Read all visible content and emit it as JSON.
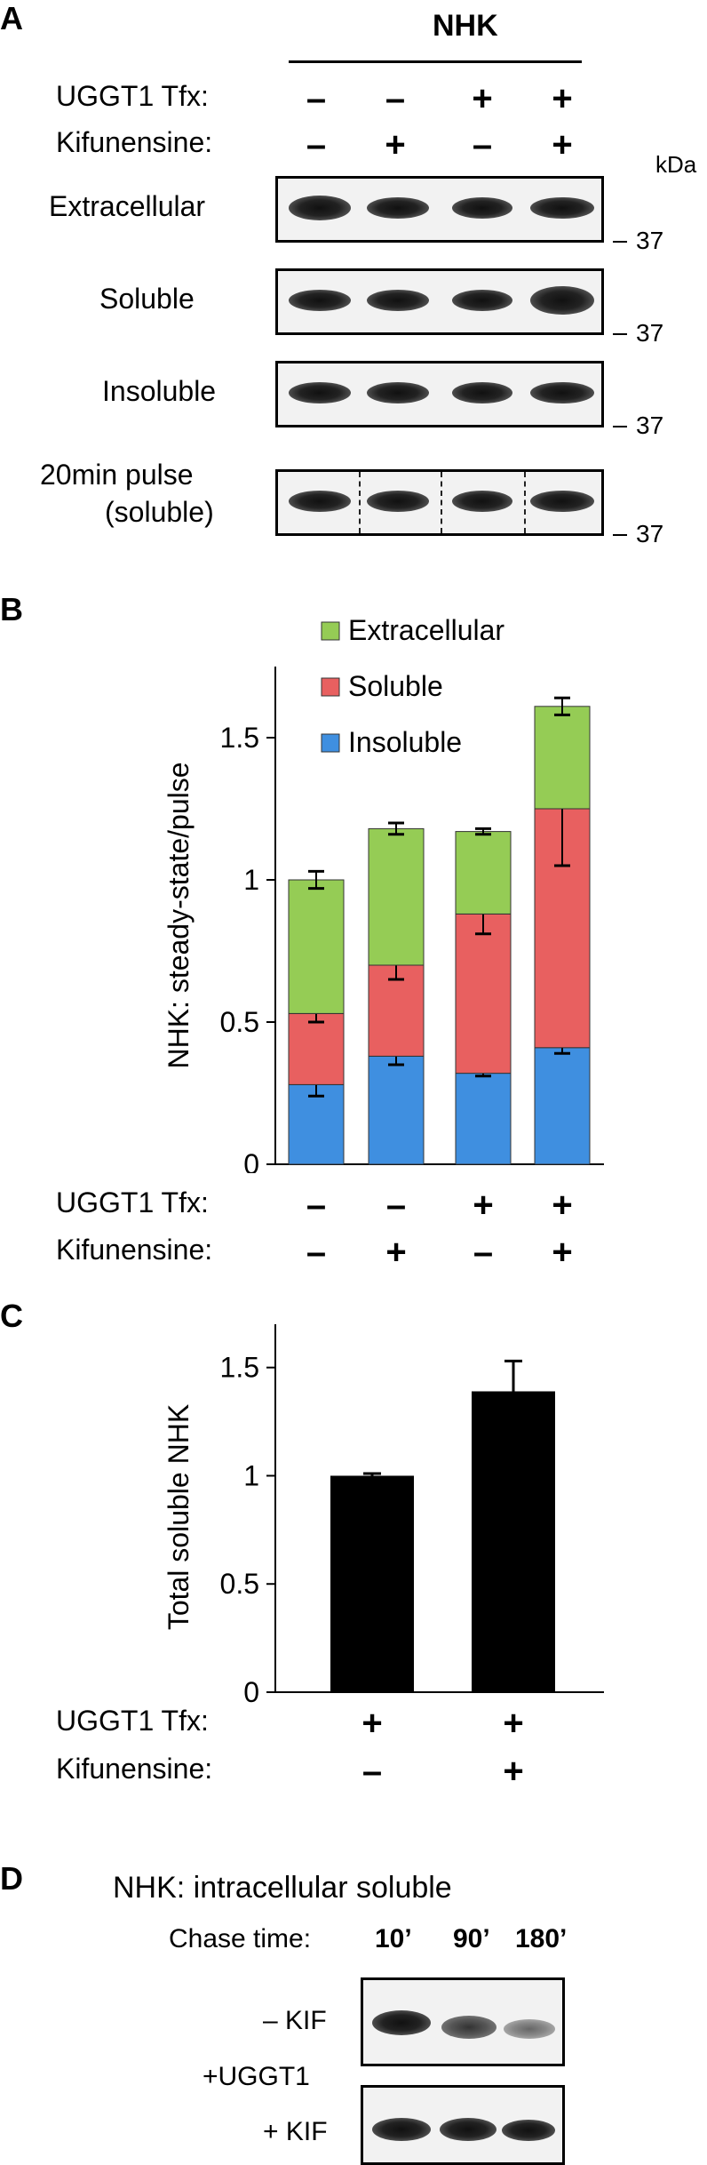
{
  "panelA": {
    "letter": "A",
    "title": "NHK",
    "row1_label": "UGGT1 Tfx:",
    "row1_signs": [
      "–",
      "–",
      "+",
      "+"
    ],
    "row2_label": "Kifunensine:",
    "row2_signs": [
      "–",
      "+",
      "–",
      "+"
    ],
    "kda": "kDa",
    "blots": [
      {
        "label": "Extracellular",
        "mw": "37"
      },
      {
        "label": "Soluble",
        "mw": "37"
      },
      {
        "label": "Insoluble",
        "mw": "37"
      },
      {
        "label": "20min pulse",
        "label2": "(soluble)",
        "mw": "37"
      }
    ]
  },
  "panelB": {
    "letter": "B",
    "row1_label": "UGGT1 Tfx:",
    "row1_signs": [
      "–",
      "–",
      "+",
      "+"
    ],
    "row2_label": "Kifunensine:",
    "row2_signs": [
      "–",
      "+",
      "–",
      "+"
    ]
  },
  "panelC": {
    "letter": "C",
    "row1_label": "UGGT1 Tfx:",
    "row1_signs": [
      "+",
      "+"
    ],
    "row2_label": "Kifunensine:",
    "row2_signs": [
      "–",
      "+"
    ]
  },
  "panelD": {
    "letter": "D",
    "title": "NHK: intracellular soluble",
    "chase_label": "Chase time:",
    "times": [
      "10’",
      "90’",
      "180’"
    ],
    "row1": "– KIF",
    "row2": "+ KIF",
    "group": "+UGGT1"
  },
  "chart_data": [
    {
      "type": "bar",
      "stacked": true,
      "ylabel": "NHK: steady-state/pulse",
      "ylim": [
        0,
        1.75
      ],
      "yticks": [
        0,
        0.5,
        1,
        1.5
      ],
      "ytick_labels": [
        "0",
        "0.5",
        "1",
        "1.5"
      ],
      "categories": [
        "",
        "",
        "",
        ""
      ],
      "legend_position": "top",
      "series": [
        {
          "name": "Insoluble",
          "color": "#3f8fe0",
          "values": [
            0.28,
            0.38,
            0.32,
            0.41
          ],
          "errors": [
            0.04,
            0.03,
            0.01,
            0.02
          ]
        },
        {
          "name": "Soluble",
          "color": "#e86060",
          "values": [
            0.25,
            0.32,
            0.56,
            0.84
          ],
          "errors": [
            0.03,
            0.05,
            0.07,
            0.2
          ]
        },
        {
          "name": "Extracellular",
          "color": "#95cc55",
          "values": [
            0.47,
            0.48,
            0.29,
            0.36
          ],
          "errors": [
            0.03,
            0.02,
            0.01,
            0.03
          ]
        }
      ]
    },
    {
      "type": "bar",
      "ylabel": "Total soluble NHK",
      "ylim": [
        0,
        1.7
      ],
      "yticks": [
        0,
        0.5,
        1,
        1.5
      ],
      "ytick_labels": [
        "0",
        "0.5",
        "1",
        "1.5"
      ],
      "categories": [
        "",
        ""
      ],
      "color": "#000000",
      "values": [
        1.0,
        1.39
      ],
      "errors": [
        0.01,
        0.14
      ]
    }
  ]
}
